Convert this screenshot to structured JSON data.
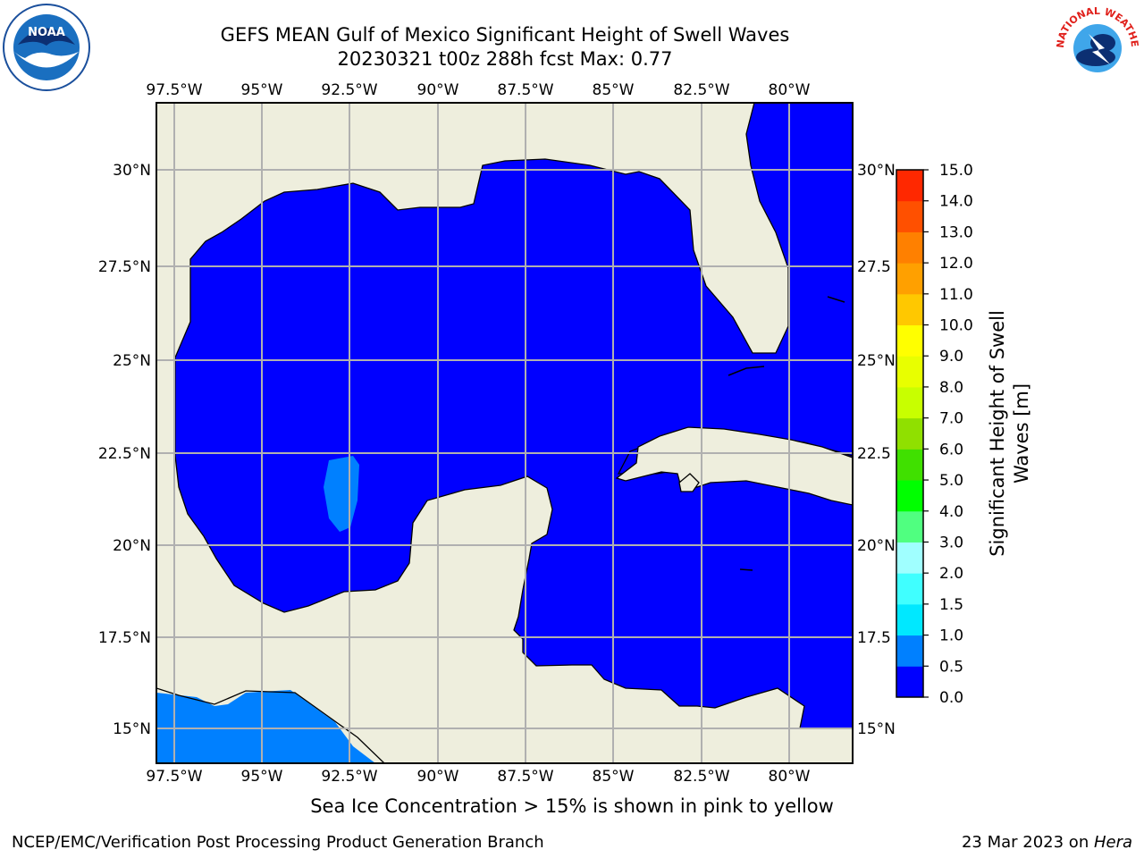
{
  "header": {
    "title_line1": "GEFS MEAN Gulf of Mexico Significant Height of Swell Waves",
    "title_line2": "20230321 t00z 288h fcst   Max: 0.77"
  },
  "map": {
    "lon_labels": [
      "97.5°W",
      "95°W",
      "92.5°W",
      "90°W",
      "87.5°W",
      "85°W",
      "82.5°W",
      "80°W"
    ],
    "lat_labels": [
      "30°N",
      "27.5°N",
      "25°N",
      "22.5°N",
      "20°N",
      "17.5°N",
      "15°N"
    ],
    "right_lat_labels": [
      "30°N",
      "27.5",
      "25°N",
      "22.5",
      "20°N",
      "17.5",
      "15°N"
    ],
    "colors": {
      "land": "#eeeedd",
      "ocean": "#0000ff",
      "swell_1": "#0080ff",
      "grid": "#b0b0b0"
    }
  },
  "colorbar": {
    "label": "Significant Height of Swell Waves [m]",
    "label_line1": "Significant Height of Swell",
    "label_line2": "Waves [m]",
    "ticks": [
      "0.0",
      "0.5",
      "1.0",
      "1.5",
      "2.0",
      "3.0",
      "4.0",
      "5.0",
      "6.0",
      "7.0",
      "8.0",
      "9.0",
      "10.0",
      "11.0",
      "12.0",
      "13.0",
      "14.0",
      "15.0"
    ],
    "colors": [
      "#0000ff",
      "#0080ff",
      "#00e8ff",
      "#40ffff",
      "#a0ffff",
      "#50ff80",
      "#00ff00",
      "#40e000",
      "#90e000",
      "#c8ff00",
      "#e8ff00",
      "#ffff00",
      "#ffc800",
      "#ffa000",
      "#ff8000",
      "#ff5000",
      "#ff2800"
    ]
  },
  "notes": {
    "ice": "Sea Ice Concentration > 15% is shown in pink to yellow",
    "footer_left": "NCEP/EMC/Verification Post Processing Product Generation Branch",
    "footer_date": "23 Mar 2023 on ",
    "footer_host": "Hera"
  },
  "logos": {
    "noaa_text": "NOAA",
    "nws_text": "NATIONAL WEATHER SERVICE"
  }
}
